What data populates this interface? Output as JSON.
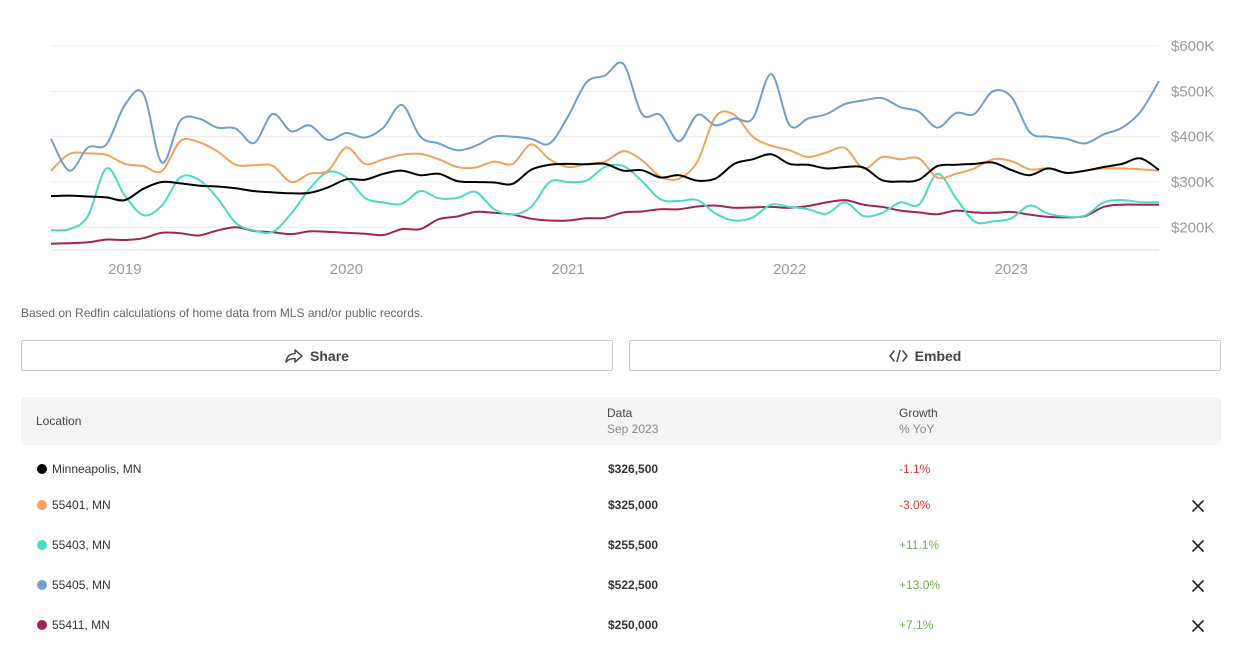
{
  "chart_data": {
    "type": "line",
    "x": [
      "2018-09",
      "2018-10",
      "2018-11",
      "2018-12",
      "2019-01",
      "2019-02",
      "2019-03",
      "2019-04",
      "2019-05",
      "2019-06",
      "2019-07",
      "2019-08",
      "2019-09",
      "2019-10",
      "2019-11",
      "2019-12",
      "2020-01",
      "2020-02",
      "2020-03",
      "2020-04",
      "2020-05",
      "2020-06",
      "2020-07",
      "2020-08",
      "2020-09",
      "2020-10",
      "2020-11",
      "2020-12",
      "2021-01",
      "2021-02",
      "2021-03",
      "2021-04",
      "2021-05",
      "2021-06",
      "2021-07",
      "2021-08",
      "2021-09",
      "2021-10",
      "2021-11",
      "2021-12",
      "2022-01",
      "2022-02",
      "2022-03",
      "2022-04",
      "2022-05",
      "2022-06",
      "2022-07",
      "2022-08",
      "2022-09",
      "2022-10",
      "2022-11",
      "2022-12",
      "2023-01",
      "2023-02",
      "2023-03",
      "2023-04",
      "2023-05",
      "2023-06",
      "2023-07",
      "2023-08",
      "2023-09"
    ],
    "x_ticks": [
      "2019",
      "2020",
      "2021",
      "2022",
      "2023"
    ],
    "y_ticks": [
      "$200K",
      "$300K",
      "$400K",
      "$500K",
      "$600K"
    ],
    "ylim": [
      150000,
      600000
    ],
    "series": [
      {
        "name": "Minneapolis, MN",
        "color": "#000000",
        "values": [
          269000,
          270000,
          268000,
          266000,
          260000,
          285000,
          300000,
          297000,
          292000,
          290000,
          286000,
          280000,
          277000,
          275000,
          276000,
          288000,
          306000,
          305000,
          318000,
          325000,
          315000,
          318000,
          302000,
          300000,
          299000,
          296000,
          327000,
          338000,
          340000,
          339000,
          340000,
          325000,
          326000,
          310000,
          315000,
          303000,
          308000,
          340000,
          350000,
          361000,
          340000,
          338000,
          330000,
          333000,
          332000,
          304000,
          301000,
          305000,
          335000,
          338000,
          340000,
          343000,
          326500,
          315000,
          330000,
          320000,
          325000,
          333000,
          340000,
          352000,
          326500
        ]
      },
      {
        "name": "55401, MN",
        "color": "#f4a259",
        "values": [
          325000,
          362000,
          363000,
          360000,
          340000,
          335000,
          324000,
          390000,
          388000,
          368000,
          338000,
          337000,
          336000,
          300000,
          318000,
          325000,
          376000,
          340000,
          350000,
          360000,
          362000,
          350000,
          333000,
          332000,
          345000,
          340000,
          383000,
          350000,
          333000,
          340000,
          345000,
          368000,
          348000,
          312000,
          307000,
          345000,
          445000,
          448000,
          400000,
          380000,
          370000,
          355000,
          365000,
          375000,
          330000,
          355000,
          350000,
          352000,
          310000,
          318000,
          330000,
          350000,
          346000,
          328000,
          330000,
          320000,
          325000,
          330000,
          330000,
          328000,
          325000
        ]
      },
      {
        "name": "55403, MN",
        "color": "#4dd9c4",
        "values": [
          194000,
          196000,
          225000,
          330000,
          270000,
          227000,
          248000,
          310000,
          305000,
          265000,
          210000,
          193000,
          190000,
          230000,
          285000,
          322000,
          310000,
          265000,
          255000,
          252000,
          280000,
          264000,
          265000,
          278000,
          240000,
          228000,
          245000,
          300000,
          300000,
          303000,
          333000,
          335000,
          302000,
          262000,
          258000,
          260000,
          230000,
          215000,
          222000,
          250000,
          245000,
          240000,
          230000,
          255000,
          225000,
          232000,
          255000,
          250000,
          318000,
          265000,
          213000,
          213000,
          220000,
          248000,
          230000,
          224000,
          226000,
          255000,
          260000,
          255500,
          255500
        ]
      },
      {
        "name": "55405, MN",
        "color": "#6f9fcf",
        "values": [
          395000,
          325000,
          376000,
          383000,
          470000,
          495000,
          343000,
          435000,
          440000,
          420000,
          418000,
          386000,
          450000,
          412000,
          425000,
          393000,
          408000,
          398000,
          420000,
          470000,
          400000,
          385000,
          370000,
          380000,
          400000,
          400000,
          395000,
          385000,
          445000,
          520000,
          535000,
          560000,
          450000,
          448000,
          390000,
          448000,
          425000,
          440000,
          440000,
          538000,
          425000,
          440000,
          450000,
          472000,
          480000,
          485000,
          465000,
          455000,
          420000,
          452000,
          450000,
          500000,
          488000,
          410000,
          400000,
          395000,
          385000,
          405000,
          420000,
          455000,
          522500
        ]
      },
      {
        "name": "55411, MN",
        "color": "#a0245a",
        "values": [
          164000,
          165000,
          167000,
          173000,
          172000,
          176000,
          188000,
          187000,
          182000,
          193000,
          200000,
          192000,
          189000,
          185000,
          191000,
          190000,
          188000,
          186000,
          183000,
          196000,
          196000,
          218000,
          224000,
          234000,
          232000,
          228000,
          219000,
          215000,
          215000,
          220000,
          221000,
          233000,
          235000,
          240000,
          240000,
          246000,
          248000,
          243000,
          244000,
          245000,
          243000,
          247000,
          255000,
          260000,
          250000,
          245000,
          237000,
          233000,
          229000,
          237000,
          233000,
          232000,
          234000,
          228000,
          223000,
          222000,
          225000,
          245000,
          250000,
          250000,
          250000
        ]
      }
    ]
  },
  "note": "Based on Redfin calculations of home data from MLS and/or public records.",
  "buttons": {
    "share": "Share",
    "embed": "Embed"
  },
  "table": {
    "headers": {
      "location": "Location",
      "data": "Data",
      "data_sub": "Sep 2023",
      "growth": "Growth",
      "growth_sub": "% YoY"
    },
    "rows": [
      {
        "location": "Minneapolis, MN",
        "value": "$326,500",
        "growth": "-1.1%",
        "color": "#000000",
        "removable": false
      },
      {
        "location": "55401, MN",
        "value": "$325,000",
        "growth": "-3.0%",
        "color": "#f4a259",
        "removable": true
      },
      {
        "location": "55403, MN",
        "value": "$255,500",
        "growth": "+11.1%",
        "color": "#4dd9c4",
        "removable": true
      },
      {
        "location": "55405, MN",
        "value": "$522,500",
        "growth": "+13.0%",
        "color": "#6f9fcf",
        "removable": true
      },
      {
        "location": "55411, MN",
        "value": "$250,000",
        "growth": "+7.1%",
        "color": "#a0245a",
        "removable": true
      }
    ]
  }
}
